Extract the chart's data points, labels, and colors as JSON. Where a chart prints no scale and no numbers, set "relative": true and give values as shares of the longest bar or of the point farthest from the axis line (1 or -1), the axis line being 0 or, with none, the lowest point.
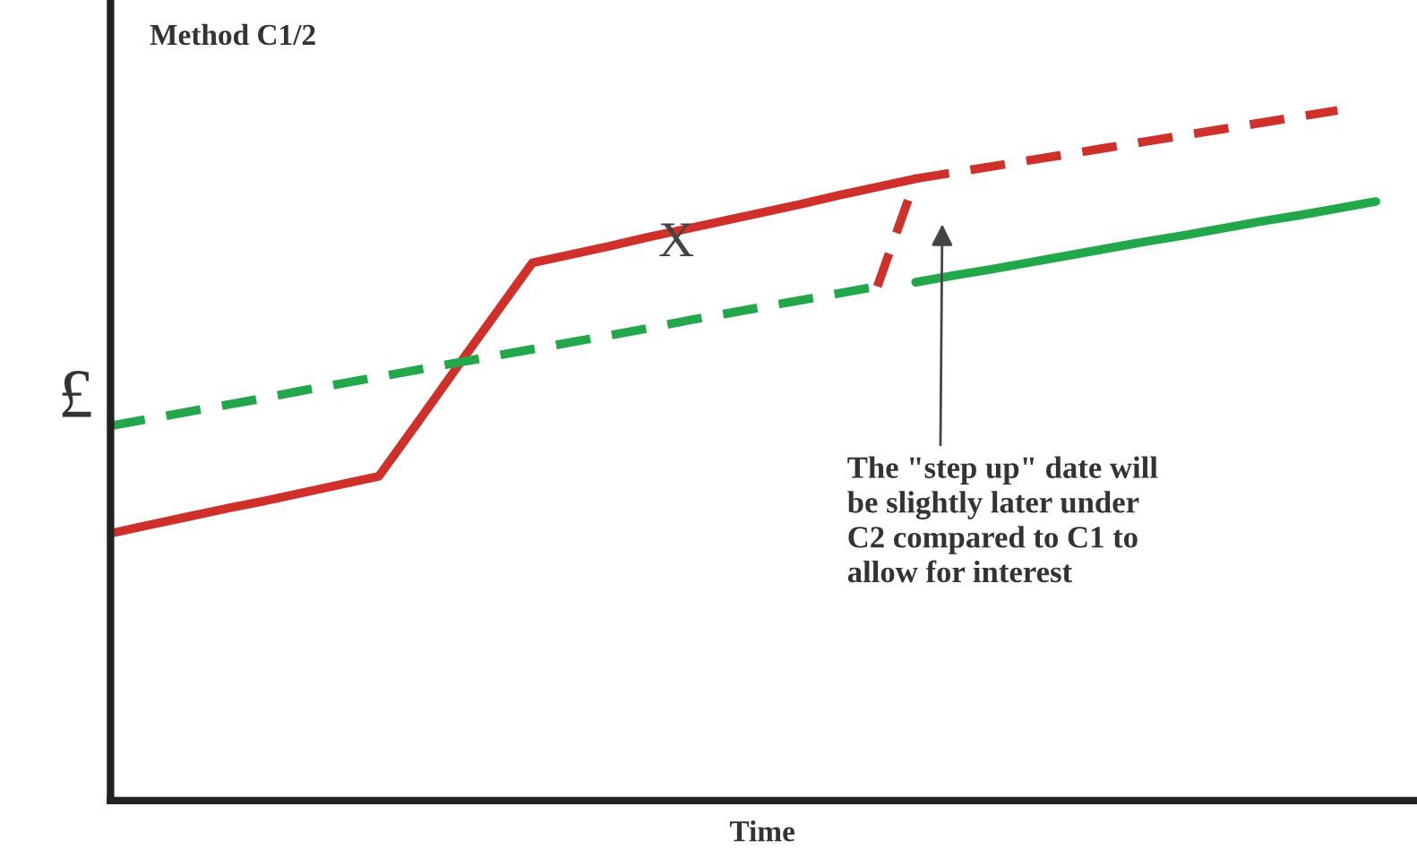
{
  "chart_data": {
    "type": "line",
    "relative": true,
    "title": "Method C1/2",
    "xlabel": "Time",
    "ylabel": "£",
    "tick_labels": false,
    "categories": [
      null,
      null,
      null,
      null,
      null,
      null,
      null,
      null,
      null,
      null,
      null,
      null,
      null,
      null,
      null,
      null,
      null,
      null,
      null,
      null,
      null,
      null,
      null,
      null,
      null,
      null,
      null,
      null,
      null,
      null,
      null,
      null,
      null,
      null
    ],
    "series": [
      {
        "color": "#d0302a",
        "line_style": "solid",
        "values": [
          0.387,
          0.399,
          0.411,
          0.423,
          0.434,
          0.446,
          0.458,
          0.47,
          0.547,
          0.625,
          0.702,
          0.779,
          0.791,
          0.803,
          0.816,
          0.828,
          0.84,
          0.852,
          0.864,
          0.877,
          0.889,
          0.901,
          null,
          null,
          null,
          null,
          null,
          null,
          null,
          null,
          null,
          null,
          null,
          null
        ]
      },
      {
        "color": "#d0302a",
        "line_style": "dashed",
        "values": [
          null,
          null,
          null,
          null,
          null,
          null,
          null,
          null,
          null,
          null,
          null,
          null,
          null,
          null,
          null,
          null,
          null,
          null,
          null,
          null,
          0.745,
          0.901,
          0.91,
          0.919,
          0.928,
          0.937,
          0.946,
          0.955,
          0.964,
          0.973,
          0.982,
          0.991,
          1.0,
          null
        ]
      },
      {
        "color": "#22a84a",
        "line_style": "dashed",
        "values": [
          0.543,
          0.553,
          0.563,
          0.573,
          0.583,
          0.594,
          0.604,
          0.614,
          0.624,
          0.634,
          0.644,
          0.654,
          0.664,
          0.674,
          0.684,
          0.695,
          0.705,
          0.715,
          0.725,
          0.735,
          0.745,
          null,
          null,
          null,
          null,
          null,
          null,
          null,
          null,
          null,
          null,
          null,
          null,
          null
        ]
      },
      {
        "color": "#22a84a",
        "line_style": "solid",
        "values": [
          null,
          null,
          null,
          null,
          null,
          null,
          null,
          null,
          null,
          null,
          null,
          null,
          null,
          null,
          null,
          null,
          null,
          null,
          null,
          null,
          null,
          0.751,
          0.761,
          0.77,
          0.78,
          0.79,
          0.8,
          0.81,
          0.819,
          0.829,
          0.839,
          0.848,
          0.858,
          0.868
        ]
      }
    ],
    "annotations": [
      "X",
      "The \"step up\" date will\nbe slightly later under\nC2 compared to C1 to\nallow for interest"
    ]
  }
}
